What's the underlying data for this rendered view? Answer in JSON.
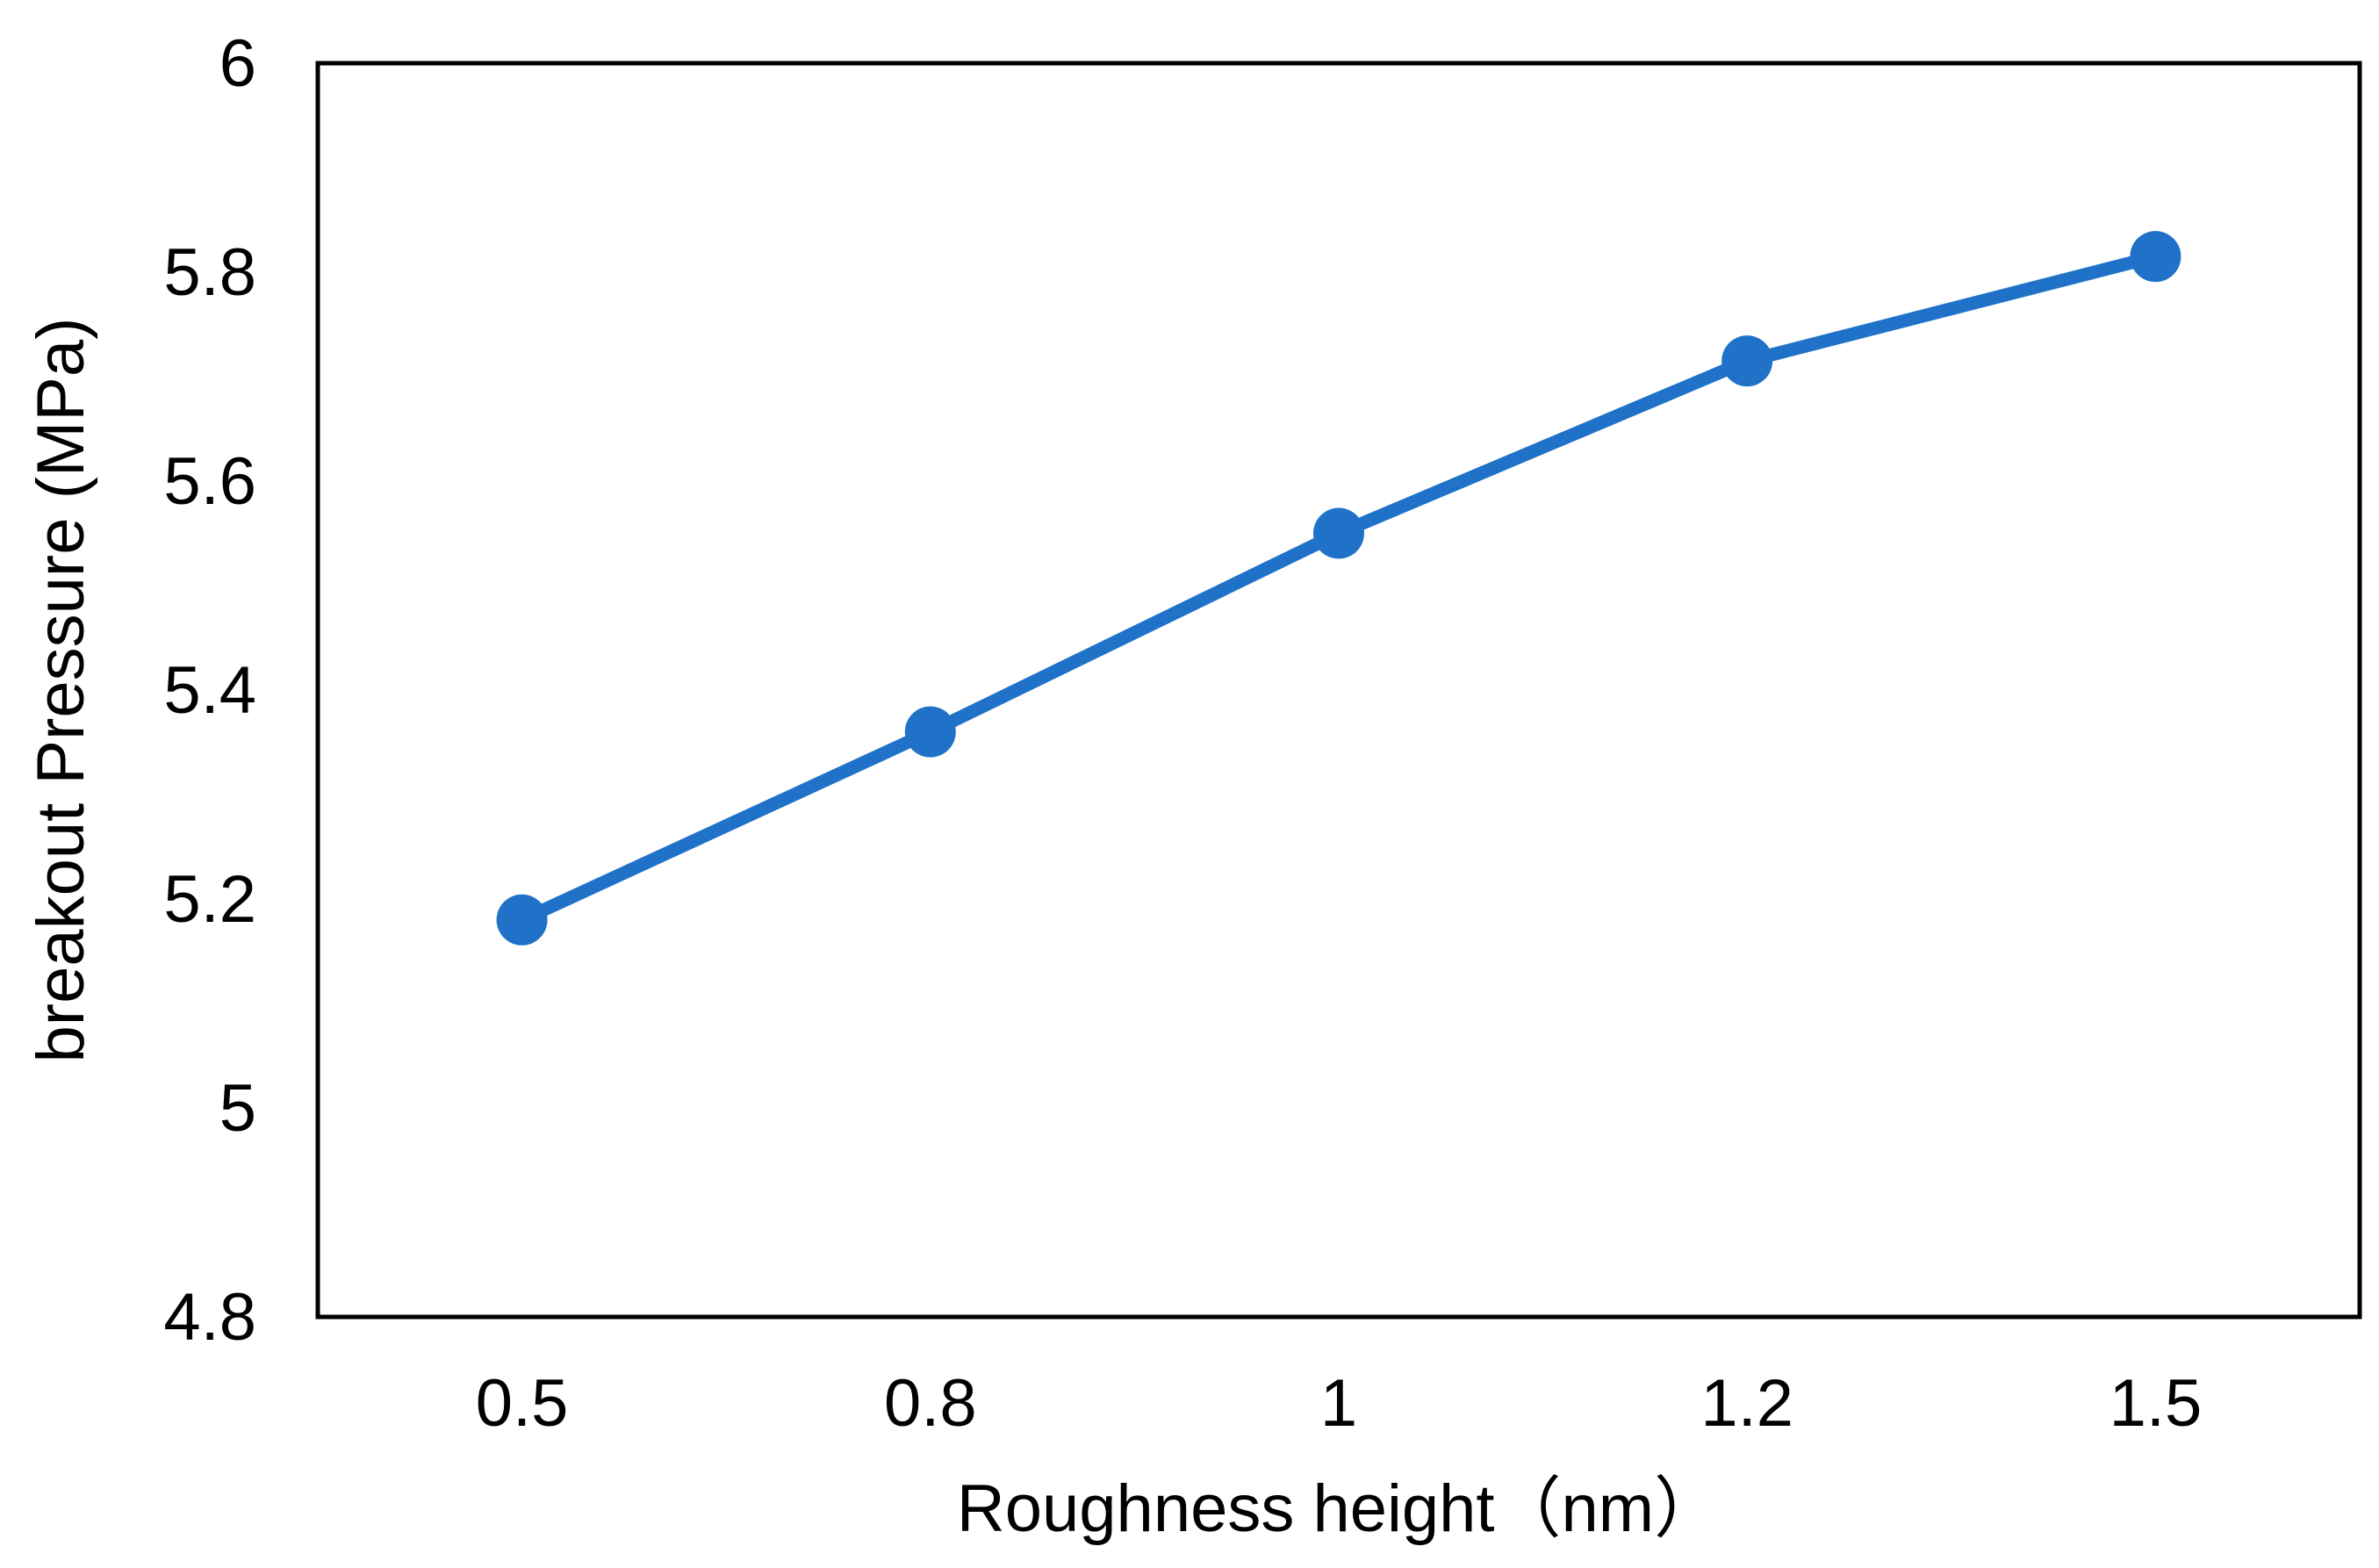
{
  "chart_data": {
    "type": "line",
    "categories": [
      "0.5",
      "0.8",
      "1",
      "1.2",
      "1.5"
    ],
    "series": [
      {
        "values": [
          5.18,
          5.36,
          5.55,
          5.715,
          5.815
        ]
      }
    ],
    "xlabel": "Roughness height（nm）",
    "ylabel": "breakout Pressure (MPa)",
    "ylim": [
      4.8,
      6
    ],
    "yticks": [
      "4.8",
      "5",
      "5.2",
      "5.4",
      "5.6",
      "5.8",
      "6"
    ],
    "grid": false,
    "legend": "none",
    "colors": {
      "series": "#1f72c8",
      "axis": "#000000"
    }
  }
}
